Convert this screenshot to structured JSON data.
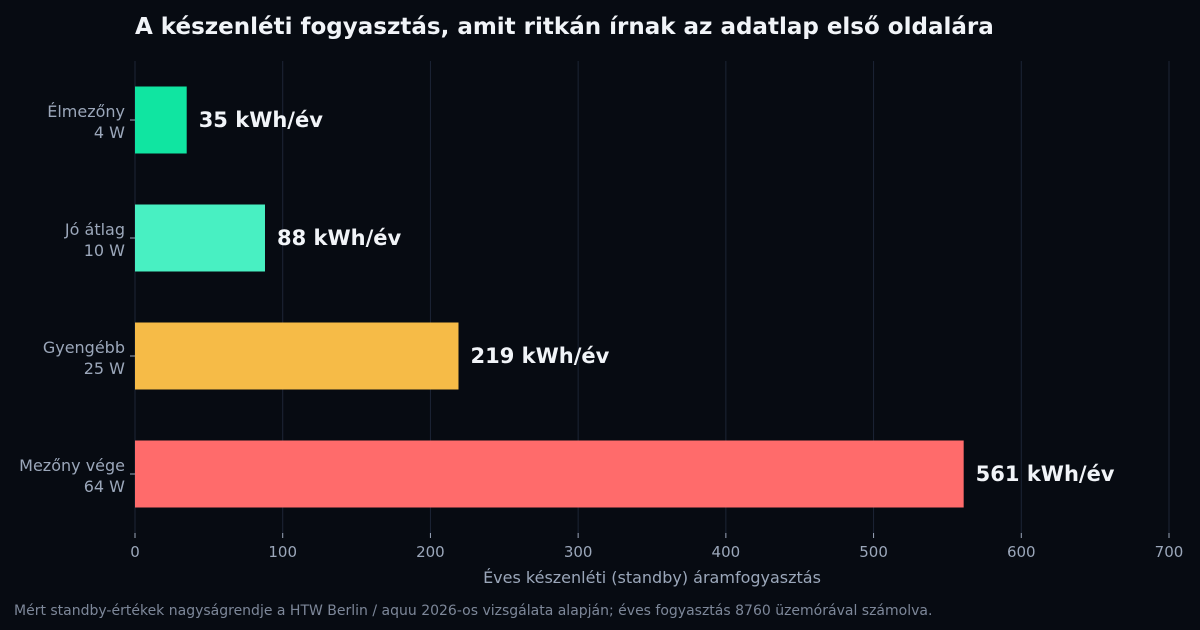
{
  "chart_data": {
    "type": "bar",
    "orientation": "horizontal",
    "title": "A készenléti fogyasztás, amit ritkán írnak az adatlap első oldalára",
    "xlabel": "Éves készenléti (standby) áramfogyasztás",
    "ylabel": "",
    "xlim": [
      0,
      700
    ],
    "xticks": [
      0,
      100,
      200,
      300,
      400,
      500,
      600,
      700
    ],
    "grid": "vertical",
    "categories": [
      {
        "name": "Élmezőny",
        "power": "4 W"
      },
      {
        "name": "Jó átlag",
        "power": "10 W"
      },
      {
        "name": "Gyengébb",
        "power": "25 W"
      },
      {
        "name": "Mezőny vége",
        "power": "64 W"
      }
    ],
    "values": [
      35,
      88,
      219,
      561
    ],
    "value_labels": [
      "35 kWh/év",
      "88 kWh/év",
      "219 kWh/év",
      "561 kWh/év"
    ],
    "colors": [
      "#10e5a1",
      "#48f0c2",
      "#f6bb47",
      "#ff6b6b"
    ]
  },
  "footnote": "Mért standby-értékek nagyságrendje a HTW Berlin / aquu 2026-os vizsgálata alapján; éves fogyasztás 8760 üzemórával számolva.",
  "theme": {
    "background": "#070b12",
    "grid": "#1c2536",
    "axis_text": "#9ba7ba",
    "value_text": "#f1f4f8"
  }
}
